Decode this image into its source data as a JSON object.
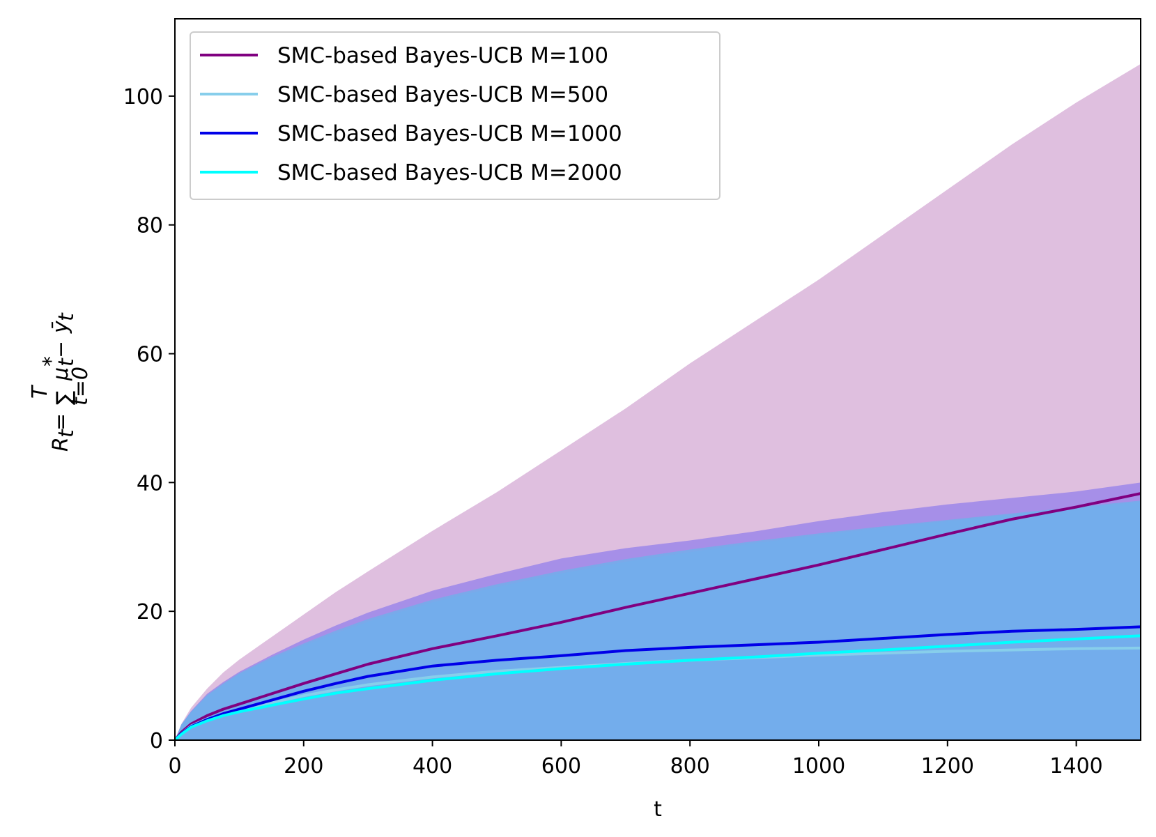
{
  "chart_data": {
    "type": "line",
    "title": "",
    "xlabel": "t",
    "ylabel": "R_t = Σ_{t=0}^{T} μ*_t − ȳ_t",
    "ylabel_parts": {
      "R": "R",
      "t": "t",
      "eq": " = ",
      "sigma": "∑",
      "upper": "T",
      "lower": "t=0",
      "mu": "μ",
      "mu_sub": "t",
      "mu_sup": "*",
      "minus": " − ",
      "y": "ȳ",
      "y_sub": "t"
    },
    "xlim": [
      0,
      1500
    ],
    "ylim": [
      0,
      112
    ],
    "x_ticks": [
      0,
      200,
      400,
      600,
      800,
      1000,
      1200,
      1400
    ],
    "y_ticks": [
      0,
      20,
      40,
      60,
      80,
      100
    ],
    "grid": false,
    "legend_position": "top-left",
    "x": [
      0,
      10,
      25,
      50,
      75,
      100,
      150,
      200,
      250,
      300,
      400,
      500,
      600,
      700,
      800,
      900,
      1000,
      1100,
      1200,
      1300,
      1400,
      1500
    ],
    "series": [
      {
        "name": "SMC-based Bayes-UCB M=100",
        "color": "#800080",
        "band_color": "#dfbfdf",
        "mean": [
          0,
          1.2,
          2.5,
          3.8,
          4.8,
          5.6,
          7.2,
          8.8,
          10.3,
          11.8,
          14.2,
          16.2,
          18.3,
          20.6,
          22.8,
          25.0,
          27.2,
          29.6,
          32.0,
          34.3,
          36.2,
          38.3
        ],
        "band_upper": [
          0,
          2.5,
          5.0,
          8.0,
          10.5,
          12.5,
          16.0,
          19.5,
          23.0,
          26.2,
          32.5,
          38.5,
          45.0,
          51.5,
          58.5,
          65.0,
          71.5,
          78.5,
          85.5,
          92.5,
          99.0,
          105.0
        ],
        "band_lower": [
          0,
          0,
          0,
          0,
          0,
          0,
          0,
          0,
          0,
          0,
          0,
          0,
          0,
          0,
          0,
          0,
          0,
          0,
          0,
          0,
          0,
          0
        ]
      },
      {
        "name": "SMC-based Bayes-UCB M=500",
        "color": "#87ceeb",
        "band_color": "#a68fe8",
        "mean": [
          0,
          1.0,
          2.2,
          3.3,
          4.0,
          4.7,
          5.8,
          6.9,
          7.8,
          8.6,
          9.8,
          10.7,
          11.3,
          11.9,
          12.4,
          12.8,
          13.2,
          13.5,
          13.8,
          14.0,
          14.2,
          14.3
        ],
        "band_upper": [
          0,
          2.4,
          4.5,
          7.2,
          9.0,
          10.6,
          13.2,
          15.6,
          17.8,
          19.8,
          23.2,
          25.8,
          28.2,
          29.8,
          31.0,
          32.4,
          34.0,
          35.4,
          36.6,
          37.6,
          38.6,
          40.0
        ],
        "band_lower": [
          0,
          0,
          0,
          0,
          0,
          0,
          0,
          0,
          0,
          0,
          0,
          0,
          0,
          0,
          0,
          0,
          0,
          0,
          0,
          0,
          0,
          0
        ]
      },
      {
        "name": "SMC-based Bayes-UCB M=1000",
        "color": "#0000e8",
        "band_color": "#7aa9ea",
        "mean": [
          0,
          1.0,
          2.1,
          3.2,
          4.1,
          4.8,
          6.2,
          7.6,
          8.8,
          9.9,
          11.5,
          12.4,
          13.1,
          13.9,
          14.4,
          14.8,
          15.2,
          15.8,
          16.4,
          16.9,
          17.2,
          17.6
        ],
        "band_upper": [
          0,
          2.4,
          4.4,
          7.0,
          8.8,
          10.4,
          12.9,
          15.0,
          17.0,
          18.8,
          21.8,
          24.2,
          26.3,
          28.1,
          29.6,
          30.9,
          32.1,
          33.2,
          34.2,
          35.2,
          36.2,
          37.2
        ],
        "band_lower": [
          0,
          0,
          0,
          0,
          0,
          0,
          0,
          0,
          0,
          0,
          0,
          0,
          0,
          0,
          0,
          0,
          0,
          0,
          0,
          0,
          0,
          0
        ]
      },
      {
        "name": "SMC-based Bayes-UCB M=2000",
        "color": "#00ffff",
        "band_color": "#73adec",
        "mean": [
          0,
          0.9,
          2.0,
          3.0,
          3.8,
          4.4,
          5.4,
          6.4,
          7.3,
          8.0,
          9.3,
          10.3,
          11.1,
          11.8,
          12.4,
          12.9,
          13.5,
          14.0,
          14.6,
          15.2,
          15.7,
          16.2
        ],
        "band_upper": [
          0,
          2.3,
          4.3,
          6.8,
          8.6,
          10.2,
          12.6,
          14.7,
          16.6,
          18.4,
          21.4,
          23.8,
          25.9,
          27.7,
          29.2,
          30.6,
          31.8,
          33.0,
          34.0,
          35.0,
          36.0,
          37.0
        ],
        "band_lower": [
          0,
          0,
          0,
          0,
          0,
          0,
          0,
          0,
          0,
          0,
          0,
          0,
          0,
          0,
          0,
          0,
          0,
          0,
          0,
          0,
          0,
          0
        ]
      }
    ]
  }
}
